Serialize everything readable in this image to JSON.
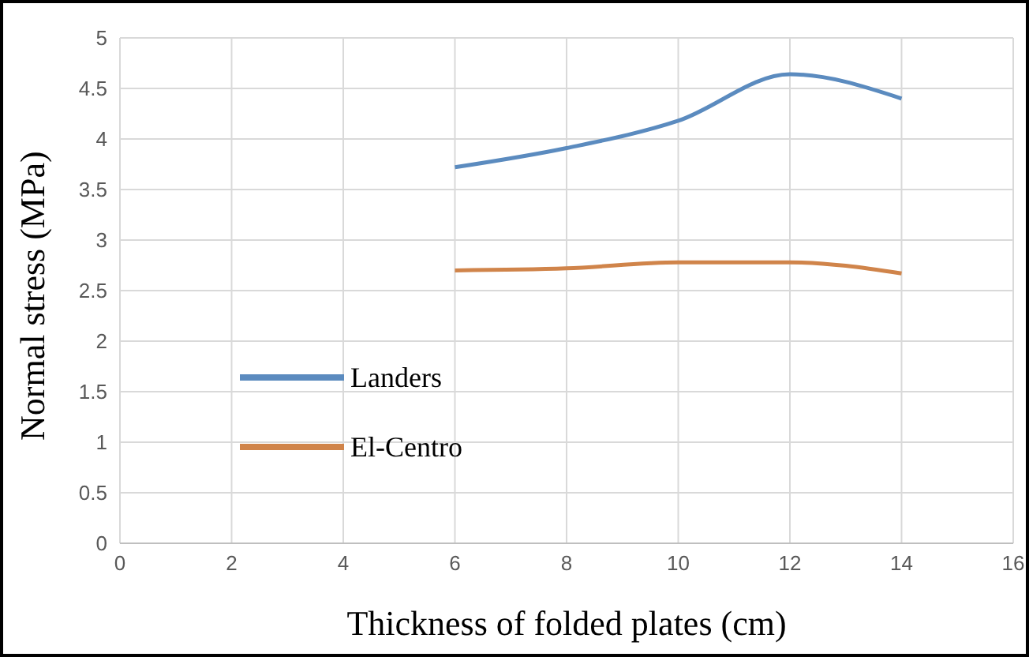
{
  "chart_data": {
    "type": "line",
    "xlabel": "Thickness of folded plates (cm)",
    "ylabel": "Normal stress (MPa)",
    "x": [
      6,
      8,
      10,
      12,
      14
    ],
    "series": [
      {
        "name": "Landers",
        "color": "#5b8bbf",
        "values": [
          3.72,
          3.91,
          4.18,
          4.64,
          4.4
        ]
      },
      {
        "name": "El-Centro",
        "color": "#d0844a",
        "values": [
          2.7,
          2.72,
          2.78,
          2.78,
          2.67
        ]
      }
    ],
    "xlim": [
      0,
      16
    ],
    "xticks": [
      0,
      2,
      4,
      6,
      8,
      10,
      12,
      14,
      16
    ],
    "ylim": [
      0,
      5
    ],
    "yticks": [
      0,
      0.5,
      1,
      1.5,
      2,
      2.5,
      3,
      3.5,
      4,
      4.5,
      5
    ],
    "grid": true,
    "legend": "left",
    "marker": "none",
    "line_style": "solid"
  }
}
